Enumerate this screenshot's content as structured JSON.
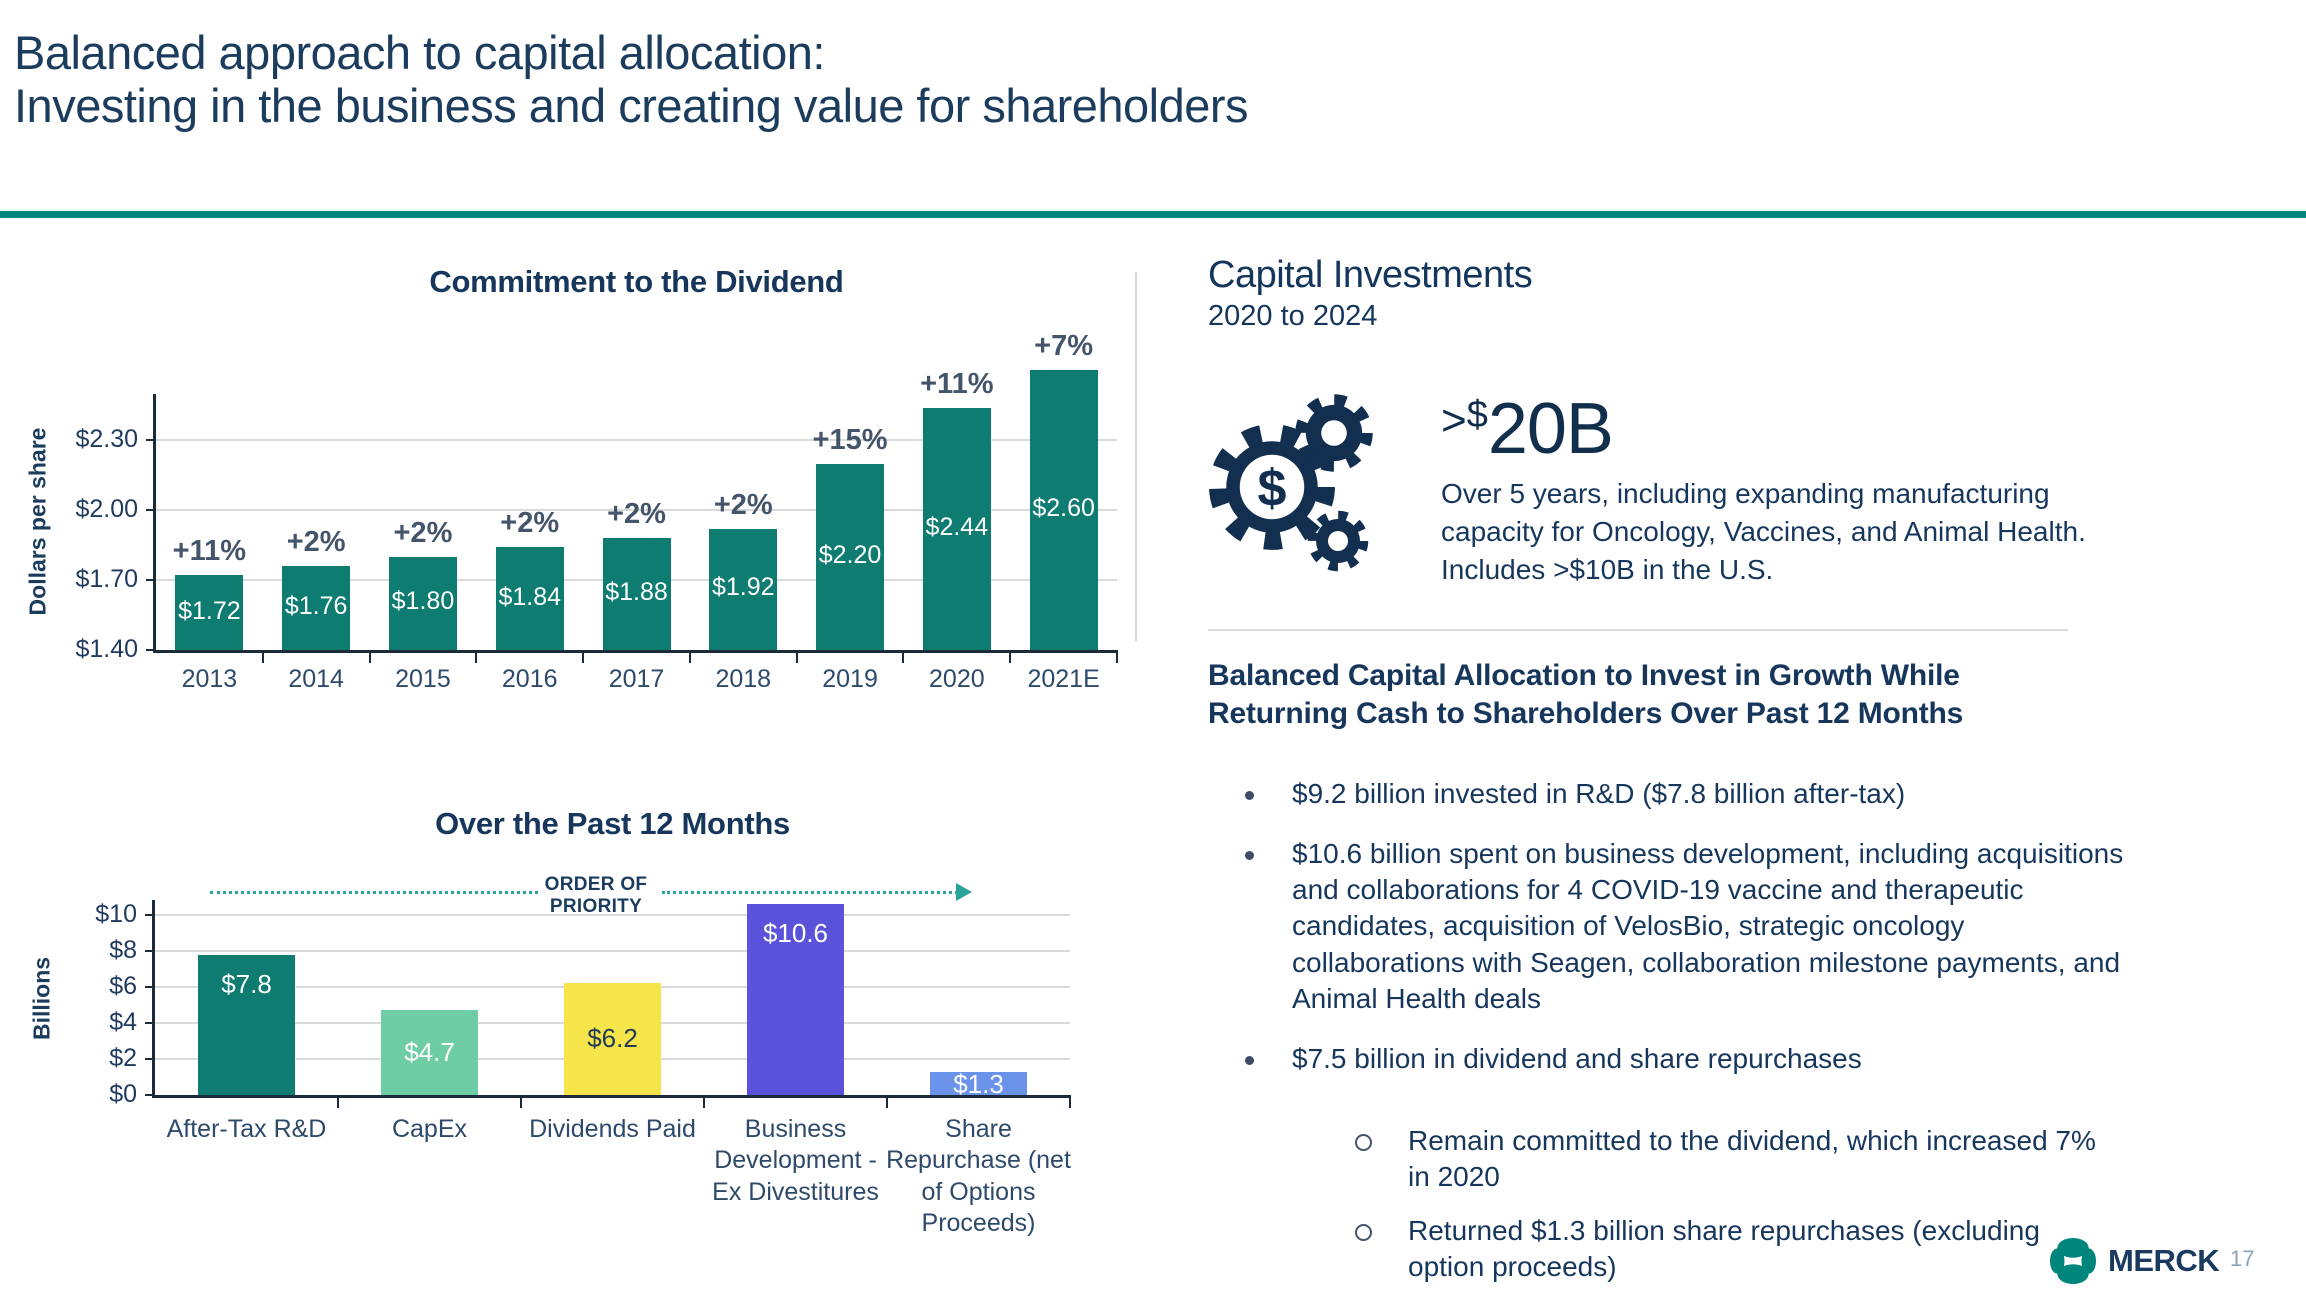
{
  "slide": {
    "title_line1": "Balanced approach to capital allocation:",
    "title_line2": "Investing in the business and creating value for shareholders",
    "page_number": "17",
    "logo_text": "MERCK"
  },
  "colors": {
    "accent_teal": "#00857C",
    "navy_text": "#16365C",
    "dark_navy": "#112E4D",
    "bar_teal": "#0E7C71",
    "bar_mint": "#6FCDA6",
    "bar_yellow": "#F5E54A",
    "bar_indigo": "#5A52DA",
    "bar_blue": "#6B93EA",
    "annotation_teal": "#2AA39A"
  },
  "chart_data": [
    {
      "id": "dividend",
      "type": "bar",
      "title": "Commitment to the Dividend",
      "ylabel": "Dollars per share",
      "categories": [
        "2013",
        "2014",
        "2015",
        "2016",
        "2017",
        "2018",
        "2019",
        "2020",
        "2021E"
      ],
      "values": [
        1.72,
        1.76,
        1.8,
        1.84,
        1.88,
        1.92,
        2.2,
        2.44,
        2.6
      ],
      "bar_labels": [
        "$1.72",
        "$1.76",
        "$1.80",
        "$1.84",
        "$1.88",
        "$1.92",
        "$2.20",
        "$2.44",
        "$2.60"
      ],
      "growth_labels": [
        "+11%",
        "+2%",
        "+2%",
        "+2%",
        "+2%",
        "+2%",
        "+15%",
        "+11%",
        "+7%"
      ],
      "bar_color": "#0E7C71",
      "label_color": "#FFFFFF",
      "yticks": [
        {
          "label": "$1.40",
          "value": 1.4
        },
        {
          "label": "$1.70",
          "value": 1.7
        },
        {
          "label": "$2.00",
          "value": 2.0
        },
        {
          "label": "$2.30",
          "value": 2.3
        }
      ],
      "ylim": [
        1.4,
        2.75
      ],
      "grid": true,
      "legend": "none"
    },
    {
      "id": "past-12-months",
      "type": "bar",
      "title": "Over the Past 12 Months",
      "ylabel": "Billions",
      "annotation": "ORDER OF PRIORITY",
      "categories": [
        "After-Tax R&D",
        "CapEx",
        "Dividends Paid",
        "Business Development - Ex Divestitures",
        "Share Repurchase (net of Options Proceeds)"
      ],
      "values": [
        7.8,
        4.7,
        6.2,
        10.6,
        1.3
      ],
      "bar_labels": [
        "$7.8",
        "$4.7",
        "$6.2",
        "$10.6",
        "$1.3"
      ],
      "bar_colors": [
        "#0E7C71",
        "#6FCDA6",
        "#F5E54A",
        "#5A52DA",
        "#6B93EA"
      ],
      "label_colors": [
        "#FFFFFF",
        "#FFFFFF",
        "#243B55",
        "#FFFFFF",
        "#FFFFFF"
      ],
      "yticks": [
        {
          "label": "$0",
          "value": 0
        },
        {
          "label": "$2",
          "value": 2
        },
        {
          "label": "$4",
          "value": 4
        },
        {
          "label": "$6",
          "value": 6
        },
        {
          "label": "$8",
          "value": 8
        },
        {
          "label": "$10",
          "value": 10
        }
      ],
      "ylim": [
        0,
        11
      ],
      "grid": true,
      "legend": "none"
    }
  ],
  "right_panel": {
    "heading": "Capital Investments",
    "subheading": "2020 to 2024",
    "big_stat": {
      "gt": ">",
      "currency": "$",
      "amount": "20B"
    },
    "stat_desc": "Over 5 years, including expanding manufacturing capacity for Oncology, Vaccines, and Animal Health. Includes >$10B in the U.S.",
    "section_heading": "Balanced Capital Allocation to Invest in Growth While Returning Cash to Shareholders Over Past 12 Months",
    "bullets": [
      "$9.2 billion invested in R&D ($7.8 billion after-tax)",
      "$10.6 billion spent on business development, including acquisitions and collaborations for 4 COVID-19 vaccine and therapeutic candidates, acquisition of VelosBio, strategic oncology collaborations with Seagen, collaboration milestone payments, and Animal Health deals",
      "$7.5 billion in dividend and share repurchases"
    ],
    "sub_bullets": [
      "Remain committed to the dividend, which increased 7% in 2020",
      "Returned $1.3 billion share repurchases (excluding option proceeds)"
    ]
  }
}
